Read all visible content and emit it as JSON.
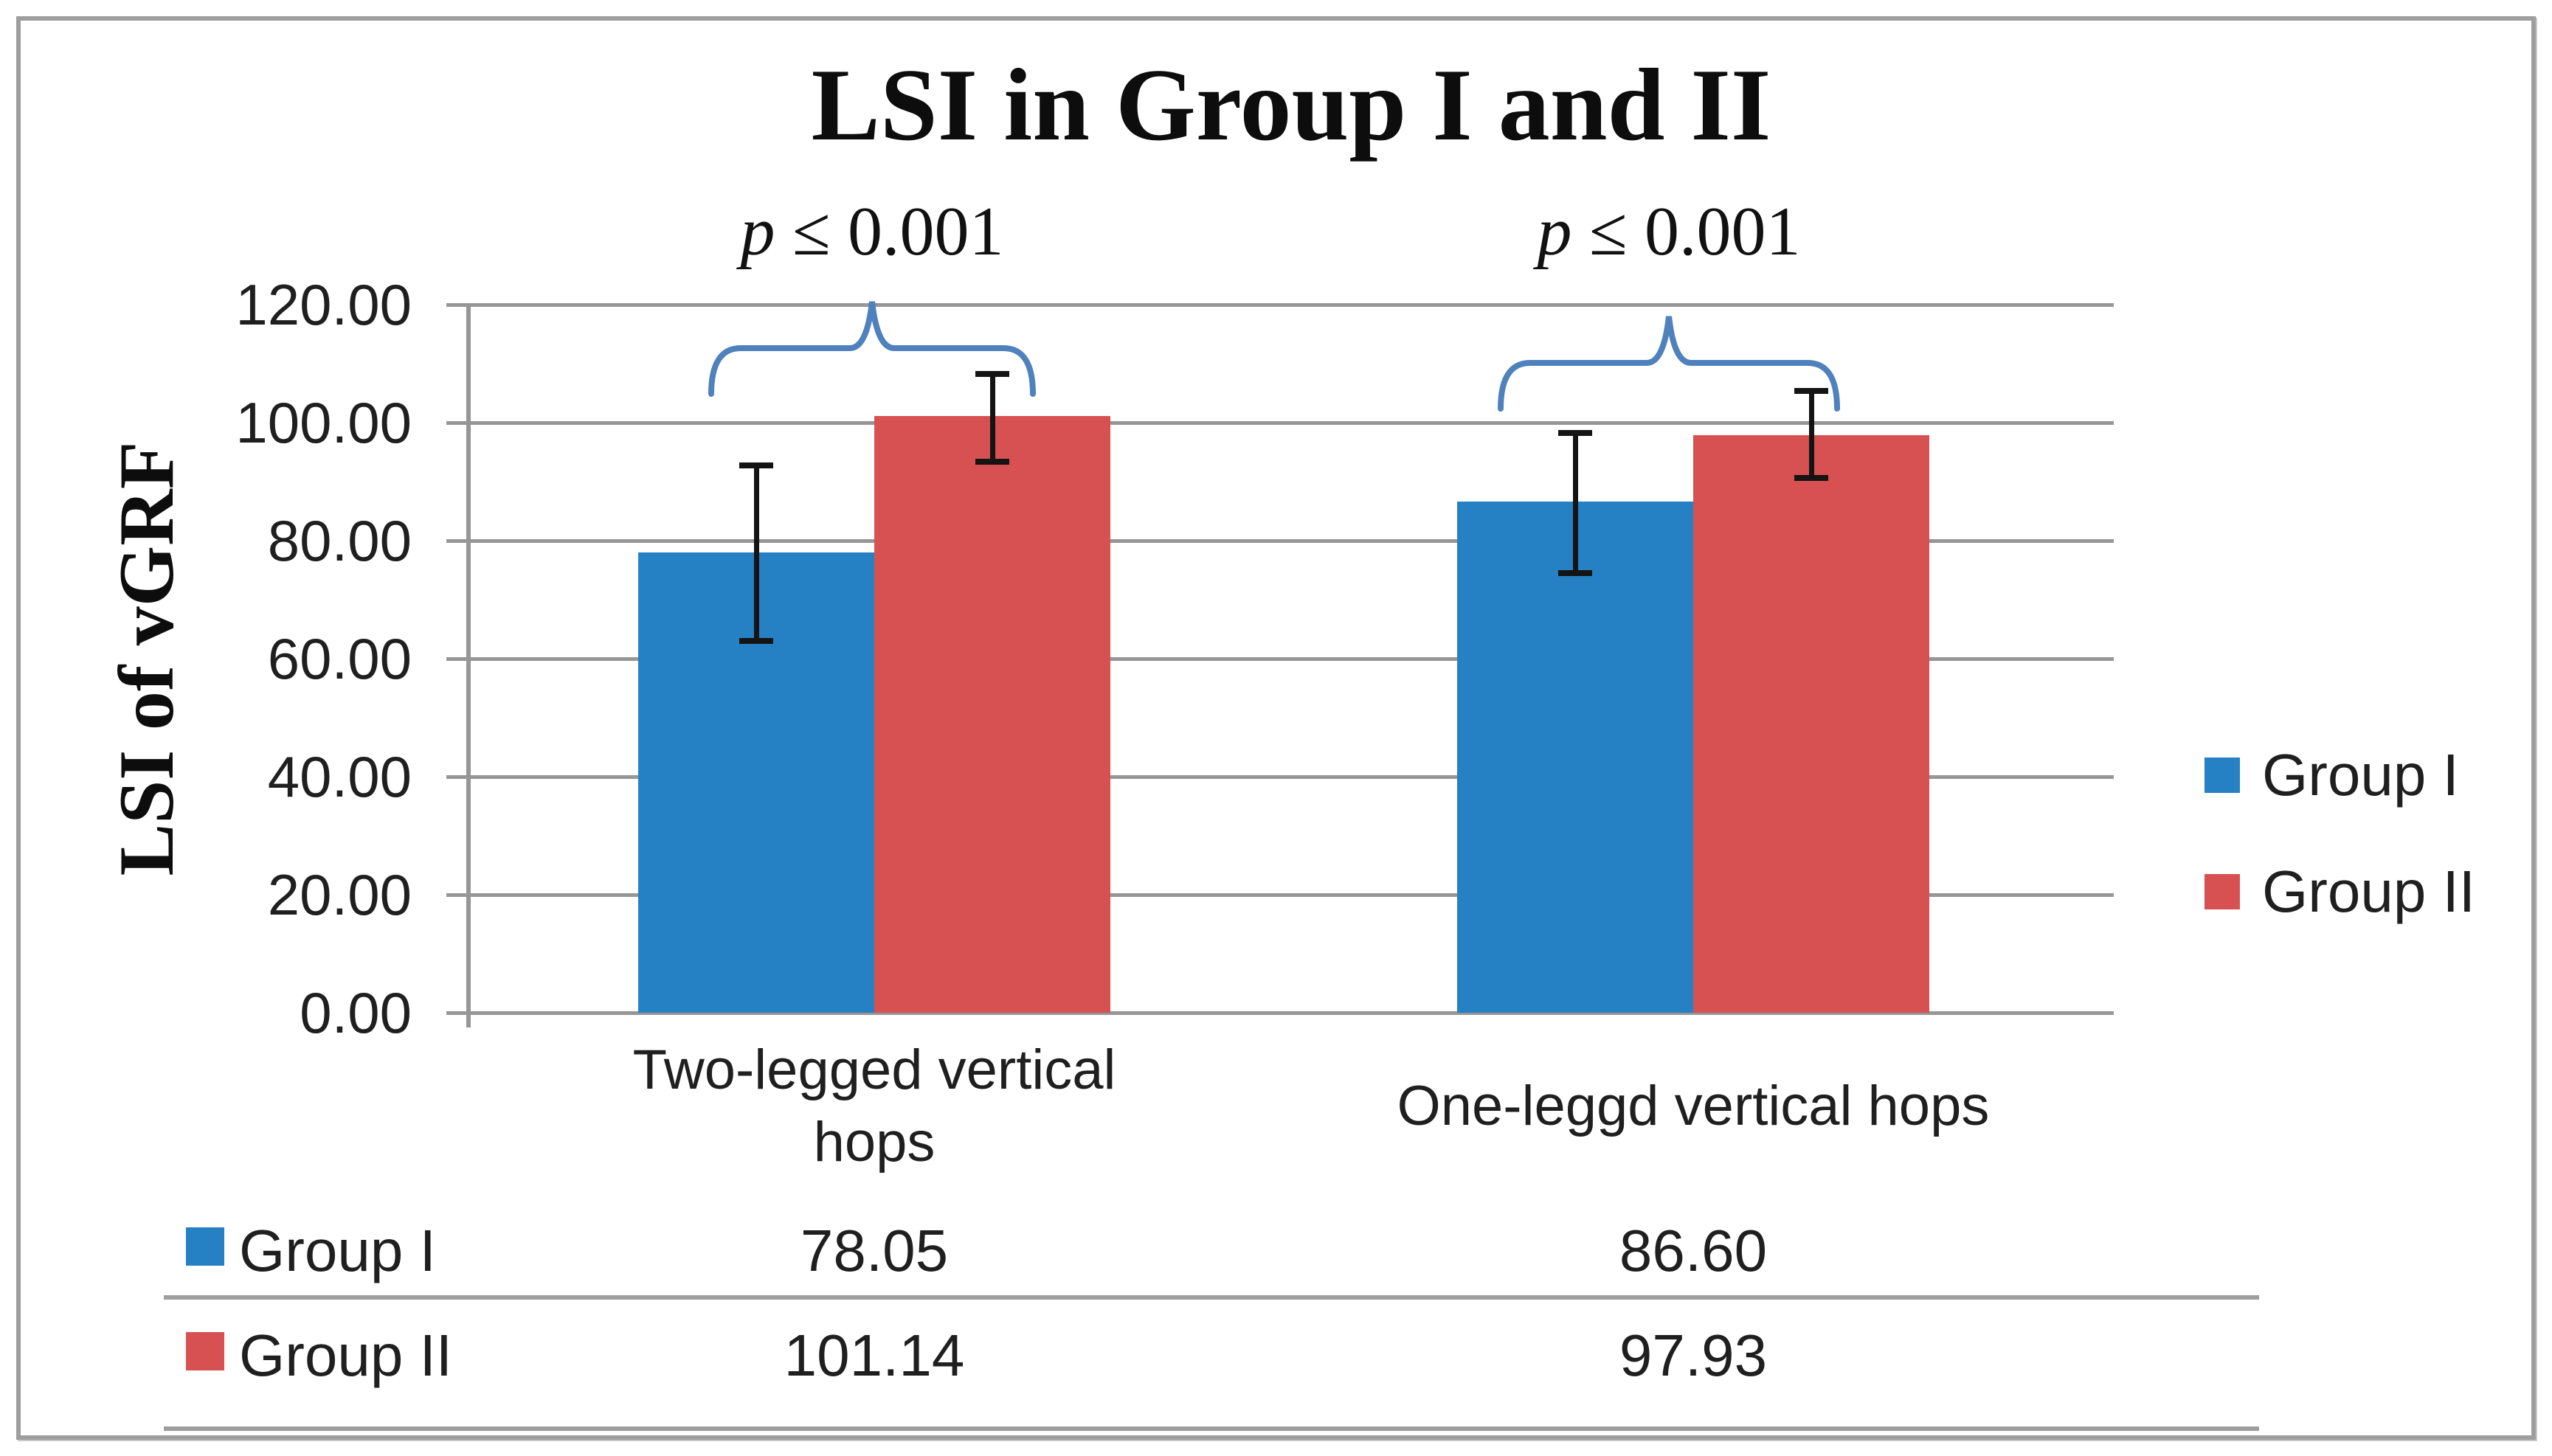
{
  "chart_data": {
    "type": "bar",
    "title": "LSI in Group I and II",
    "ylabel": "LSI of vGRF",
    "xlabel": "",
    "ylim": [
      0,
      120
    ],
    "ytick_step": 20,
    "ytick_labels": [
      "0.00",
      "20.00",
      "40.00",
      "60.00",
      "80.00",
      "100.00",
      "120.00"
    ],
    "grid": true,
    "legend_position": "right",
    "categories": [
      "Two-legged vertical hops",
      "One-leggd vertical hops"
    ],
    "category_label_lines": [
      [
        "Two-legged vertical",
        "hops"
      ],
      [
        "One-leggd vertical hops"
      ]
    ],
    "series": [
      {
        "name": "Group I",
        "color": "#2581C4",
        "values": [
          78.05,
          86.6
        ],
        "error_bars": [
          {
            "low": 63.0,
            "high": 92.8
          },
          {
            "low": 74.5,
            "high": 98.3
          }
        ]
      },
      {
        "name": "Group II",
        "color": "#D85152",
        "values": [
          101.14,
          97.93
        ],
        "error_bars": [
          {
            "low": 93.4,
            "high": 108.3
          },
          {
            "low": 90.6,
            "high": 105.4
          }
        ]
      }
    ],
    "annotations": [
      {
        "label": "p ≤ 0.001",
        "category": 0
      },
      {
        "label": "p ≤ 0.001",
        "category": 1
      }
    ],
    "data_table": {
      "rows": [
        {
          "name": "Group I",
          "swatch": "#2581C4",
          "values": [
            "78.05",
            "86.60"
          ]
        },
        {
          "name": "Group II",
          "swatch": "#D85152",
          "values": [
            "101.14",
            "97.93"
          ]
        }
      ]
    },
    "colors": {
      "gridline": "#969696",
      "axis": "#969696",
      "error_bar": "#141414",
      "brace": "#4F81BD",
      "text": "#1f1f1f",
      "frame": "#9e9e9e"
    }
  }
}
